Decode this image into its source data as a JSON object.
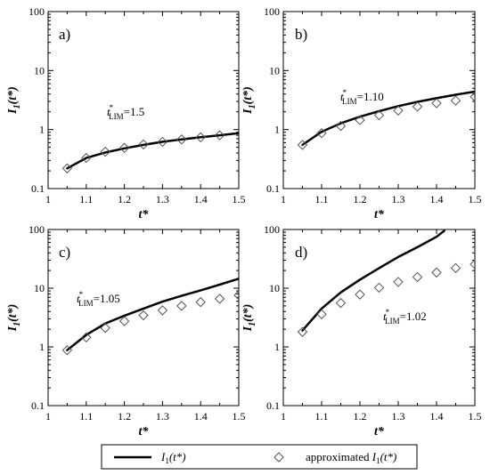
{
  "chart_data": [
    {
      "type": "line",
      "panel_label": "a)",
      "xlabel": "t*",
      "ylabel": "I1(t*)",
      "xlim": [
        1,
        1.5
      ],
      "ylim": [
        0.1,
        100
      ],
      "yscale": "log",
      "xticks": [
        "1",
        "1.1",
        "1.2",
        "1.3",
        "1.4",
        "1.5"
      ],
      "yticks": [
        "0.1",
        "1",
        "10",
        "100"
      ],
      "annotation": {
        "main": "t",
        "sup": "*",
        "sub": "LIM",
        "value": "=1.5"
      },
      "series": [
        {
          "name": "I1(t*)",
          "style": "line",
          "x": [
            1.05,
            1.1,
            1.15,
            1.2,
            1.25,
            1.3,
            1.35,
            1.4,
            1.45,
            1.5
          ],
          "y": [
            0.22,
            0.33,
            0.41,
            0.48,
            0.55,
            0.62,
            0.68,
            0.74,
            0.8,
            0.87
          ]
        },
        {
          "name": "approximated I1(t*)",
          "style": "marker",
          "x": [
            1.05,
            1.1,
            1.15,
            1.2,
            1.25,
            1.3,
            1.35,
            1.4,
            1.45
          ],
          "y": [
            0.22,
            0.33,
            0.42,
            0.49,
            0.56,
            0.62,
            0.68,
            0.74,
            0.8
          ]
        }
      ]
    },
    {
      "type": "line",
      "panel_label": "b)",
      "xlabel": "t*",
      "ylabel": "I1(t*)",
      "xlim": [
        1,
        1.5
      ],
      "ylim": [
        0.1,
        100
      ],
      "yscale": "log",
      "xticks": [
        "1",
        "1.1",
        "1.2",
        "1.3",
        "1.4",
        "1.5"
      ],
      "yticks": [
        "0.1",
        "1",
        "10",
        "100"
      ],
      "annotation": {
        "main": "t",
        "sup": "*",
        "sub": "LIM",
        "value": "=1.10"
      },
      "series": [
        {
          "name": "I1(t*)",
          "style": "line",
          "x": [
            1.05,
            1.1,
            1.15,
            1.2,
            1.25,
            1.3,
            1.35,
            1.4,
            1.45,
            1.5
          ],
          "y": [
            0.55,
            0.92,
            1.28,
            1.65,
            2.05,
            2.5,
            2.95,
            3.4,
            3.9,
            4.4
          ]
        },
        {
          "name": "approximated I1(t*)",
          "style": "marker",
          "x": [
            1.05,
            1.1,
            1.15,
            1.2,
            1.25,
            1.3,
            1.35,
            1.4,
            1.45,
            1.5
          ],
          "y": [
            0.55,
            0.87,
            1.15,
            1.45,
            1.75,
            2.1,
            2.45,
            2.8,
            3.1,
            3.6
          ]
        }
      ]
    },
    {
      "type": "line",
      "panel_label": "c)",
      "xlabel": "t*",
      "ylabel": "I1(t*)",
      "xlim": [
        1,
        1.5
      ],
      "ylim": [
        0.1,
        100
      ],
      "yscale": "log",
      "xticks": [
        "1",
        "1.1",
        "1.2",
        "1.3",
        "1.4",
        "1.5"
      ],
      "yticks": [
        "0.1",
        "1",
        "10",
        "100"
      ],
      "annotation": {
        "main": "t",
        "sup": "*",
        "sub": "LIM",
        "value": "=1.05"
      },
      "series": [
        {
          "name": "I1(t*)",
          "style": "line",
          "x": [
            1.05,
            1.1,
            1.15,
            1.2,
            1.25,
            1.3,
            1.35,
            1.4,
            1.45,
            1.5
          ],
          "y": [
            0.88,
            1.6,
            2.5,
            3.4,
            4.5,
            5.9,
            7.4,
            9.2,
            11.5,
            14.5
          ]
        },
        {
          "name": "approximated I1(t*)",
          "style": "marker",
          "x": [
            1.05,
            1.1,
            1.15,
            1.2,
            1.25,
            1.3,
            1.35,
            1.4,
            1.45,
            1.5
          ],
          "y": [
            0.88,
            1.45,
            2.1,
            2.75,
            3.45,
            4.2,
            5.0,
            5.8,
            6.6,
            7.6
          ]
        }
      ]
    },
    {
      "type": "line",
      "panel_label": "d)",
      "xlabel": "t*",
      "ylabel": "I1(t*)",
      "xlim": [
        1,
        1.5
      ],
      "ylim": [
        0.1,
        100
      ],
      "yscale": "log",
      "xticks": [
        "1",
        "1.1",
        "1.2",
        "1.3",
        "1.4",
        "1.5"
      ],
      "yticks": [
        "0.1",
        "1",
        "10",
        "100"
      ],
      "annotation": {
        "main": "t",
        "sup": "*",
        "sub": "LIM",
        "value": "=1.02"
      },
      "series": [
        {
          "name": "I1(t*)",
          "style": "line",
          "x": [
            1.05,
            1.1,
            1.15,
            1.2,
            1.25,
            1.3,
            1.35,
            1.4,
            1.42
          ],
          "y": [
            1.9,
            4.5,
            8.5,
            14,
            22,
            34,
            50,
            75,
            95
          ]
        },
        {
          "name": "approximated I1(t*)",
          "style": "marker",
          "x": [
            1.05,
            1.1,
            1.15,
            1.2,
            1.25,
            1.3,
            1.35,
            1.4,
            1.45,
            1.5
          ],
          "y": [
            1.8,
            3.6,
            5.6,
            7.8,
            10.2,
            12.8,
            15.5,
            18.5,
            22,
            25.5
          ]
        }
      ]
    }
  ],
  "legend": {
    "placement": "bottom-center",
    "items": [
      {
        "symbol": "line",
        "prefix": "",
        "main": "I",
        "sub": "1",
        "arg": "(t*)"
      },
      {
        "symbol": "diamond",
        "prefix": "approximated ",
        "main": "I",
        "sub": "1",
        "arg": "(t*)"
      }
    ]
  }
}
